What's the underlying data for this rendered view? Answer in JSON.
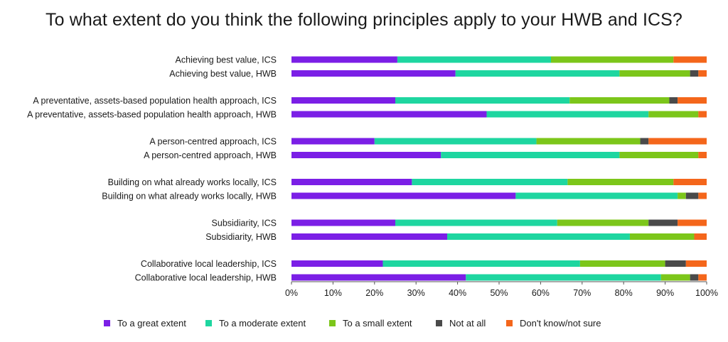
{
  "chart_data": {
    "type": "bar",
    "orientation": "horizontal",
    "stacked": "percent",
    "title": "To what extent do you think the following principles apply to your HWB and ICS?",
    "categories": [
      "Achieving best value, ICS",
      "Achieving best value, HWB",
      "A preventative, assets-based population health approach, ICS",
      "A preventative, assets-based population health approach, HWB",
      "A person-centred approach, ICS",
      "A person-centred approach, HWB",
      "Building on what already works locally, ICS",
      "Building on what already works locally, HWB",
      "Subsidiarity, ICS",
      "Subsidiarity, HWB",
      "Collaborative local leadership, ICS",
      "Collaborative local leadership, HWB"
    ],
    "series": [
      {
        "name": "To a great extent",
        "color": "#7b1fe6",
        "values": [
          25.5,
          39.5,
          25,
          47,
          20,
          36,
          29,
          54,
          25,
          37.5,
          22,
          42
        ]
      },
      {
        "name": "To a moderate extent",
        "color": "#1ed6a0",
        "values": [
          37,
          39.5,
          42,
          39,
          39,
          43,
          37.5,
          39,
          39,
          44,
          47.5,
          47
        ]
      },
      {
        "name": "To a small extent",
        "color": "#7cc61a",
        "values": [
          29.5,
          17,
          24,
          12,
          25,
          19,
          25.5,
          2,
          22,
          15.5,
          20.5,
          7
        ]
      },
      {
        "name": "Not at all",
        "color": "#4a4a4a",
        "values": [
          0,
          2,
          2,
          0,
          2,
          0,
          0,
          3,
          7,
          0,
          5,
          2
        ]
      },
      {
        "name": "Don't know/not sure",
        "color": "#f4661b",
        "values": [
          8,
          2,
          7,
          2,
          14,
          2,
          8,
          2,
          7,
          3,
          5,
          2
        ]
      }
    ],
    "xlim": [
      0,
      100
    ],
    "xticks": [
      "0%",
      "10%",
      "20%",
      "30%",
      "40%",
      "50%",
      "60%",
      "70%",
      "80%",
      "90%",
      "100%"
    ],
    "grid": false,
    "legend_position": "bottom"
  }
}
